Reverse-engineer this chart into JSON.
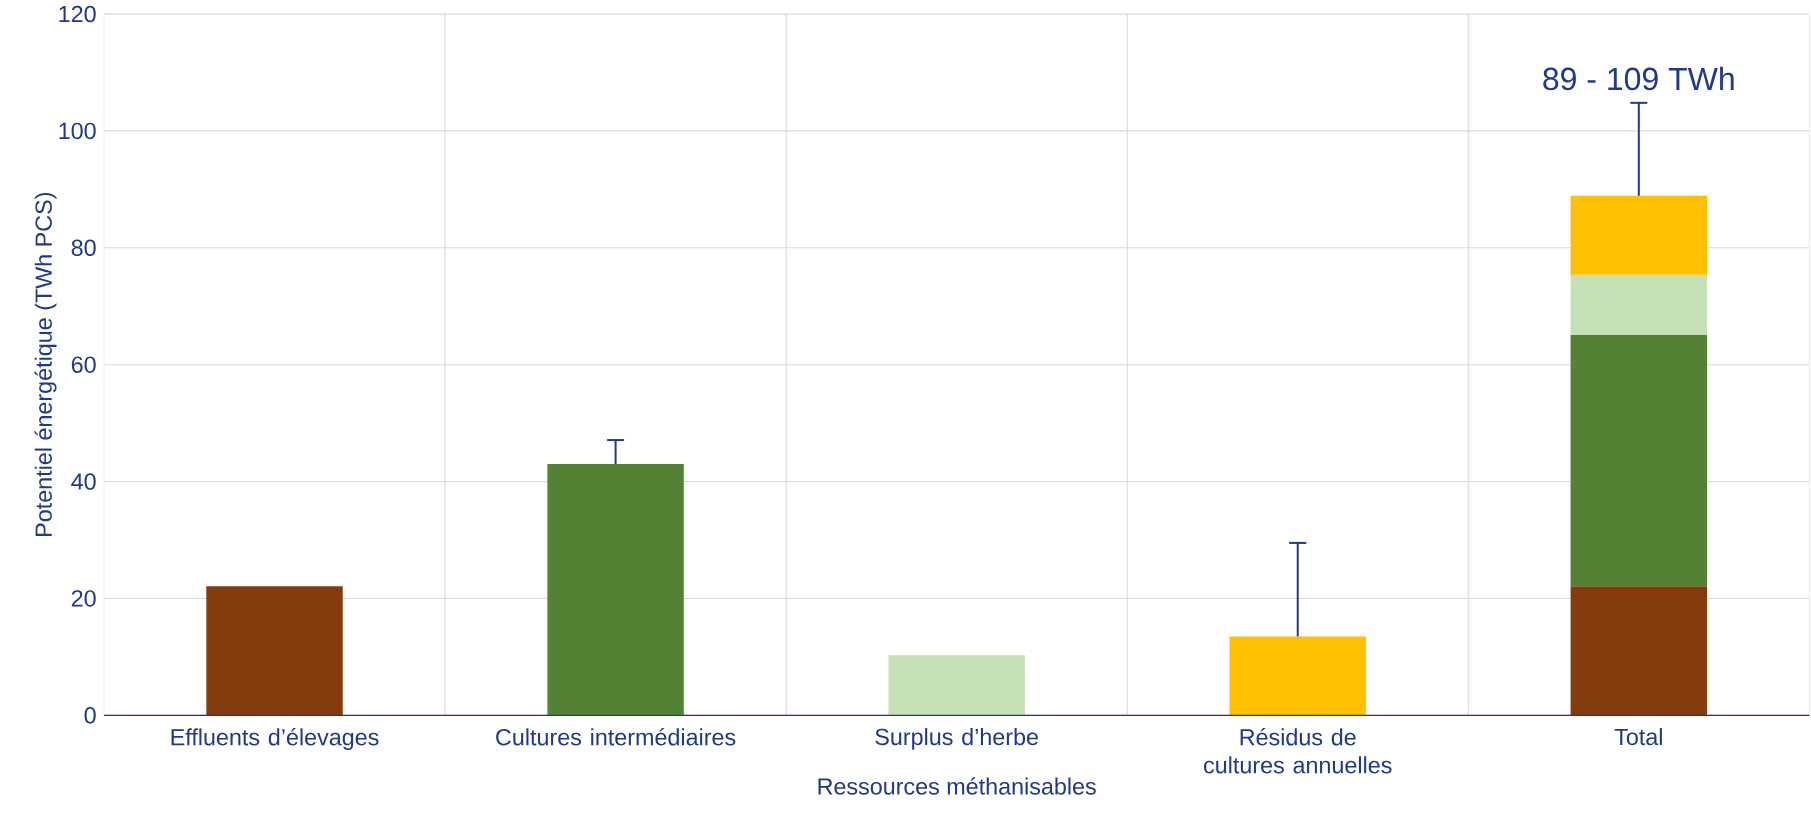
{
  "chart_data": {
    "type": "bar",
    "stacked": true,
    "xlabel": "Ressources méthanisables",
    "ylabel": "Potentiel énergétique (TWh PCS)",
    "categories": [
      "Effluents d’élevages",
      "Cultures intermédiaires",
      "Surplus d’herbe",
      "Résidus de cultures annuelles",
      "Total"
    ],
    "series": [
      {
        "color": "#843c0c",
        "values": [
          22.1,
          null,
          null,
          null,
          22.1
        ]
      },
      {
        "color": "#548235",
        "values": [
          null,
          43.0,
          null,
          null,
          43.0
        ],
        "errors": [
          null,
          [
            43.0,
            47.1
          ],
          null,
          null,
          null
        ]
      },
      {
        "color": "#c5e0b4",
        "values": [
          null,
          null,
          10.3,
          null,
          10.3
        ]
      },
      {
        "color": "#ffc000",
        "values": [
          null,
          null,
          null,
          13.5,
          13.5
        ],
        "errors": [
          null,
          null,
          null,
          [
            13.5,
            29.5
          ],
          [
            88.9,
            104.8
          ]
        ]
      }
    ],
    "ylim": [
      0,
      120
    ],
    "yticks": [
      0,
      20,
      40,
      60,
      80,
      100,
      120
    ],
    "grid": true,
    "annotations": [
      "89 - 109 TWh"
    ]
  }
}
